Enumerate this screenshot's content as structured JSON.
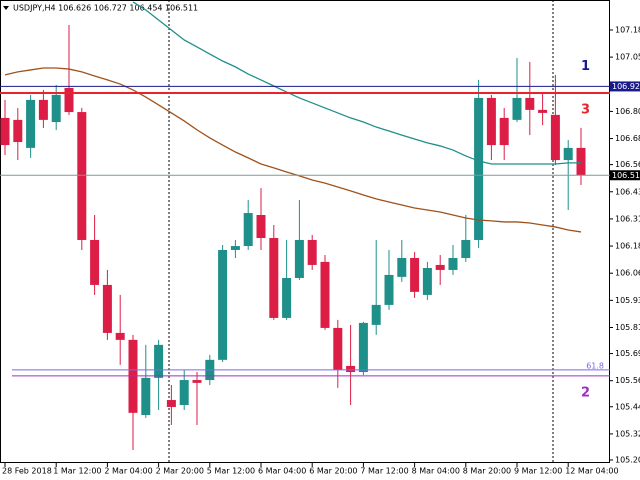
{
  "chart_data": {
    "type": "candlestick",
    "title": "USDJPY,H4 106.626 106.727 106.454 106.511",
    "categories": [
      "28 Feb 2018",
      null,
      null,
      null,
      "1 Mar 12:00",
      null,
      null,
      null,
      "2 Mar 04:00",
      null,
      null,
      null,
      "2 Mar 20:00",
      null,
      null,
      null,
      "5 Mar 12:00",
      null,
      null,
      null,
      "6 Mar 04:00",
      null,
      null,
      null,
      "6 Mar 20:00",
      null,
      null,
      null,
      "7 Mar 12:00",
      null,
      null,
      null,
      "8 Mar 04:00",
      null,
      null,
      null,
      "8 Mar 20:00",
      null,
      null,
      null,
      "9 Mar 12:00",
      null,
      null,
      null,
      "12 Mar 04:00",
      null
    ],
    "open": [
      106.775,
      106.766,
      106.637,
      106.858,
      106.756,
      106.913,
      106.802,
      106.213,
      106.006,
      105.785,
      105.753,
      105.407,
      105.578,
      105.476,
      105.453,
      105.568,
      105.568,
      105.661,
      106.167,
      106.185,
      106.328,
      106.222,
      105.854,
      106.038,
      106.213,
      106.112,
      105.808,
      105.633,
      105.605,
      105.822,
      105.914,
      106.043,
      106.13,
      105.96,
      106.098,
      106.075,
      106.13,
      106.213,
      106.867,
      106.775,
      106.766,
      106.867,
      106.812,
      106.789,
      106.581,
      106.637
    ],
    "high": [
      106.858,
      106.821,
      106.881,
      106.904,
      106.927,
      107.203,
      106.821,
      106.328,
      106.075,
      105.96,
      105.776,
      105.73,
      105.753,
      105.545,
      105.615,
      105.605,
      105.684,
      106.19,
      106.213,
      106.397,
      106.452,
      106.282,
      106.213,
      106.397,
      106.236,
      106.144,
      105.845,
      105.822,
      105.836,
      106.213,
      106.167,
      106.213,
      106.158,
      106.112,
      106.144,
      106.19,
      106.328,
      106.95,
      106.881,
      106.821,
      107.051,
      107.033,
      106.894,
      106.973,
      106.673,
      106.729
    ],
    "low": [
      106.604,
      106.581,
      106.591,
      106.729,
      106.719,
      106.789,
      106.167,
      105.96,
      105.753,
      105.638,
      105.246,
      105.394,
      105.43,
      105.361,
      105.43,
      105.361,
      105.545,
      105.651,
      106.13,
      106.167,
      106.167,
      105.845,
      105.845,
      106.029,
      106.075,
      105.799,
      105.532,
      105.453,
      105.591,
      105.776,
      105.891,
      106.02,
      105.946,
      105.937,
      106.006,
      106.052,
      106.112,
      106.176,
      106.581,
      106.581,
      106.756,
      106.696,
      106.742,
      106.558,
      106.351,
      106.466
    ],
    "close": [
      106.65,
      106.664,
      106.858,
      106.766,
      106.881,
      106.802,
      106.213,
      106.006,
      105.785,
      105.753,
      105.417,
      105.578,
      105.73,
      105.444,
      105.568,
      105.555,
      105.661,
      106.167,
      106.185,
      106.337,
      106.222,
      105.854,
      106.038,
      106.213,
      106.098,
      105.808,
      105.615,
      105.605,
      105.831,
      105.914,
      106.052,
      106.13,
      105.974,
      106.084,
      106.075,
      106.13,
      106.213,
      106.867,
      106.65,
      106.65,
      106.867,
      106.812,
      106.798,
      106.581,
      106.637,
      106.512
    ],
    "up_color": "#1f8f8a",
    "down_color": "#dc1e46",
    "series": [
      {
        "color": "#1f8f8a",
        "values": [
          null,
          null,
          null,
          null,
          null,
          null,
          null,
          null,
          null,
          null,
          107.309,
          107.272,
          107.226,
          107.18,
          107.134,
          107.102,
          107.069,
          107.037,
          107.01,
          106.977,
          106.95,
          106.922,
          106.894,
          106.867,
          106.844,
          106.821,
          106.798,
          106.775,
          106.756,
          106.733,
          106.715,
          106.696,
          106.678,
          106.66,
          106.646,
          106.627,
          106.6,
          106.577,
          106.563,
          106.563,
          106.563,
          106.563,
          106.563,
          106.563,
          106.568,
          106.568
        ]
      },
      {
        "color": "#a0521a",
        "values": [
          106.973,
          106.987,
          106.996,
          107.005,
          107.005,
          107.0,
          106.987,
          106.968,
          106.95,
          106.931,
          106.904,
          106.871,
          106.835,
          106.798,
          106.761,
          106.72,
          106.683,
          106.65,
          106.618,
          106.591,
          106.563,
          106.545,
          106.526,
          106.508,
          106.489,
          106.475,
          106.457,
          106.439,
          106.42,
          106.402,
          106.388,
          106.374,
          106.36,
          106.351,
          106.342,
          106.328,
          106.314,
          106.305,
          106.301,
          106.296,
          106.296,
          106.291,
          106.282,
          106.273,
          106.259,
          106.25
        ]
      }
    ],
    "levels": [
      {
        "value": 106.92,
        "color": "#1a1a8c",
        "label": "106.920",
        "annotation": "1"
      },
      {
        "value": 106.89,
        "color": "#e8232b",
        "annotation": "3"
      },
      {
        "value": 105.615,
        "color": "#7b68ee",
        "annotation": "61.8"
      },
      {
        "value": 105.587,
        "color": "#9b30c0",
        "annotation": "2"
      },
      {
        "value": 106.511,
        "color": "#7a9a9a",
        "label": "106.511"
      }
    ],
    "ylim": [
      105.163,
      107.318
    ],
    "yticks": [
      {
        "value": 107.18,
        "label": "107.180"
      },
      {
        "value": 107.055,
        "label": "107.055"
      },
      {
        "value": 106.805,
        "label": "106.805"
      },
      {
        "value": 106.68,
        "label": "106.680"
      },
      {
        "value": 106.56,
        "label": "106.560"
      },
      {
        "value": 106.435,
        "label": "106.435"
      },
      {
        "value": 106.31,
        "label": "106.310"
      },
      {
        "value": 106.185,
        "label": "106.185"
      },
      {
        "value": 106.06,
        "label": "106.060"
      },
      {
        "value": 105.935,
        "label": "105.935"
      },
      {
        "value": 105.81,
        "label": "105.810"
      },
      {
        "value": 105.69,
        "label": "105.690"
      },
      {
        "value": 105.565,
        "label": "105.565"
      },
      {
        "value": 105.445,
        "label": "105.445"
      },
      {
        "value": 105.32,
        "label": "105.320"
      },
      {
        "value": 105.2,
        "label": "105.200"
      }
    ]
  }
}
